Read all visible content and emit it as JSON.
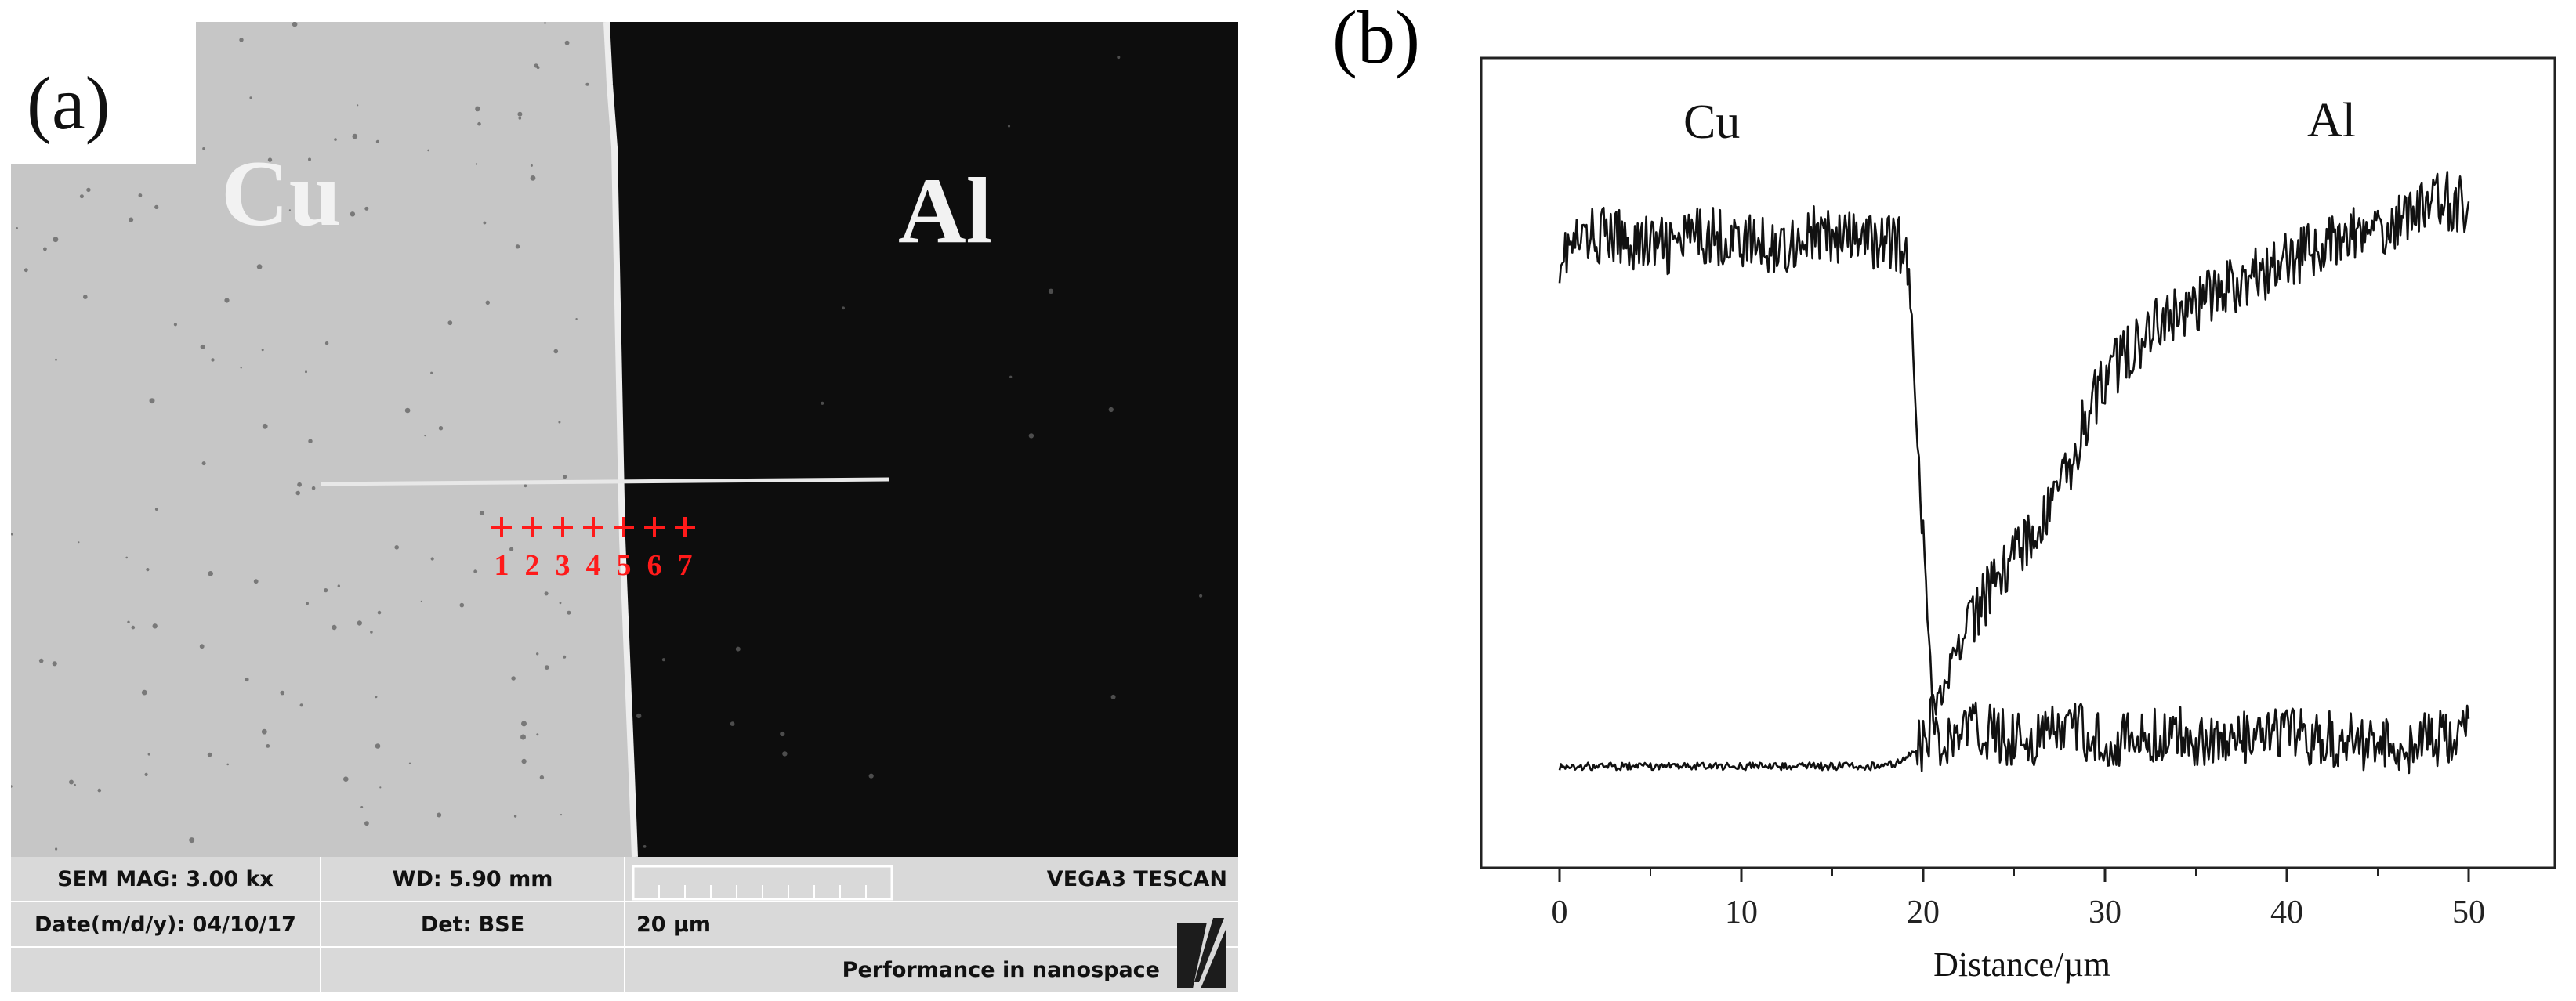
{
  "panel_a": {
    "label": "(a)",
    "left_metal": "Cu",
    "right_metal": "Al",
    "spots": [
      "1",
      "2",
      "3",
      "4",
      "5",
      "6",
      "7"
    ],
    "infobar": {
      "mag": "SEM MAG: 3.00 kx",
      "wd": "WD: 5.90 mm",
      "brand": "VEGA3 TESCAN",
      "date": "Date(m/d/y): 04/10/17",
      "det": "Det: BSE",
      "scale": "20 µm",
      "tagline": "Performance in nanospace"
    },
    "colors": {
      "cu": "#c6c6c6",
      "al": "#0d0d0d",
      "spots": "#ff1a1a"
    }
  },
  "panel_b": {
    "label": "(b)",
    "cu_label": "Cu",
    "al_label": "Al"
  },
  "chart_data": {
    "type": "line",
    "title": "",
    "xlabel": "Distance/µm",
    "ylabel": "",
    "xlim": [
      0,
      50
    ],
    "ylim": [
      0,
      1
    ],
    "xticks": [
      "0",
      "10",
      "20",
      "30",
      "40",
      "50"
    ],
    "grid": false,
    "series": [
      {
        "name": "Cu",
        "x": [
          0,
          2,
          4,
          6,
          8,
          10,
          12,
          14,
          16,
          18,
          19,
          19.5,
          20,
          20.5,
          21,
          22,
          24,
          26,
          28,
          30,
          32,
          34,
          36,
          38,
          40,
          42,
          44,
          46,
          48,
          50
        ],
        "values": [
          0.85,
          0.88,
          0.87,
          0.86,
          0.88,
          0.87,
          0.86,
          0.88,
          0.87,
          0.87,
          0.86,
          0.7,
          0.4,
          0.16,
          0.08,
          0.12,
          0.11,
          0.1,
          0.12,
          0.1,
          0.1,
          0.11,
          0.1,
          0.1,
          0.11,
          0.1,
          0.1,
          0.09,
          0.1,
          0.11
        ]
      },
      {
        "name": "Al",
        "x": [
          0,
          2,
          4,
          6,
          8,
          10,
          12,
          14,
          16,
          18,
          19,
          20,
          21,
          22,
          23,
          24,
          25,
          26,
          27,
          28,
          29,
          30,
          32,
          34,
          36,
          38,
          40,
          42,
          44,
          46,
          48,
          50
        ],
        "values": [
          0.06,
          0.06,
          0.06,
          0.06,
          0.06,
          0.06,
          0.06,
          0.06,
          0.06,
          0.06,
          0.07,
          0.1,
          0.16,
          0.24,
          0.3,
          0.35,
          0.38,
          0.42,
          0.46,
          0.52,
          0.6,
          0.66,
          0.72,
          0.76,
          0.79,
          0.81,
          0.84,
          0.86,
          0.88,
          0.9,
          0.94,
          0.92
        ]
      }
    ]
  }
}
